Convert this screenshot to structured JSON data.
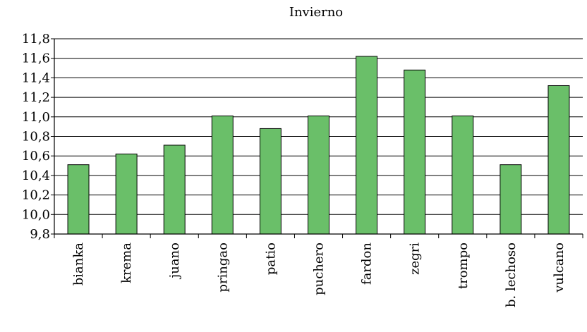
{
  "chart_data": {
    "type": "bar",
    "title": "Invierno",
    "xlabel": "",
    "ylabel": "",
    "categories": [
      "bianka",
      "krema",
      "juano",
      "pringao",
      "patio",
      "puchero",
      "fardon",
      "zegri",
      "trompo",
      "b. lechoso",
      "vulcano"
    ],
    "values": [
      10.51,
      10.62,
      10.71,
      11.01,
      10.88,
      11.01,
      11.62,
      11.48,
      11.01,
      10.51,
      11.32
    ],
    "ylim": [
      9.8,
      11.8
    ],
    "yticks": [
      "9,8",
      "10,0",
      "10,2",
      "10,4",
      "10,6",
      "10,8",
      "11,0",
      "11,2",
      "11,4",
      "11,6",
      "11,8"
    ],
    "grid": true,
    "bar_color": "#6abf69"
  }
}
